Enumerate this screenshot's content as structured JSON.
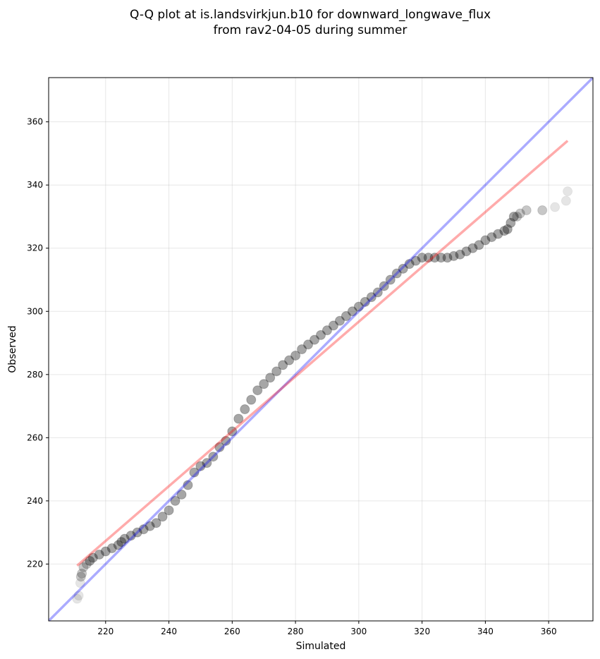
{
  "chart_data": {
    "type": "scatter",
    "title": [
      "Q-Q plot at is.landsvirkjun.b10 for downward_longwave_flux",
      "from rav2-04-05 during summer"
    ],
    "xlabel": "Simulated",
    "ylabel": "Observed",
    "xlim": [
      202,
      374
    ],
    "ylim": [
      202,
      374
    ],
    "xticks": [
      220,
      240,
      260,
      280,
      300,
      320,
      340,
      360
    ],
    "yticks": [
      220,
      240,
      260,
      280,
      300,
      320,
      340,
      360
    ],
    "grid": true,
    "reference_lines": [
      {
        "kind": "one-to-one",
        "color": "#0000ff",
        "opacity": 0.33,
        "from": [
          202,
          202
        ],
        "to": [
          374,
          374
        ]
      },
      {
        "kind": "fit",
        "color": "#ff0000",
        "opacity": 0.33,
        "from": [
          211,
          219.5
        ],
        "to": [
          366,
          354
        ]
      }
    ],
    "points": {
      "color": "#000000",
      "x": [
        211.0,
        211.5,
        212.0,
        212.2,
        212.5,
        213.0,
        214.0,
        215.0,
        216.0,
        218.0,
        220.0,
        222.0,
        224.0,
        225.0,
        226.0,
        228.0,
        230.0,
        232.0,
        234.0,
        236.0,
        238.0,
        240.0,
        242.0,
        244.0,
        246.0,
        248.0,
        250.0,
        252.0,
        254.0,
        256.0,
        258.0,
        260.0,
        262.0,
        264.0,
        266.0,
        268.0,
        270.0,
        272.0,
        274.0,
        276.0,
        278.0,
        280.0,
        282.0,
        284.0,
        286.0,
        288.0,
        290.0,
        292.0,
        294.0,
        296.0,
        298.0,
        300.0,
        302.0,
        304.0,
        306.0,
        308.0,
        310.0,
        312.0,
        314.0,
        316.0,
        318.0,
        320.0,
        322.0,
        324.0,
        326.0,
        328.0,
        330.0,
        332.0,
        334.0,
        336.0,
        338.0,
        340.0,
        342.0,
        344.0,
        346.0,
        347.0,
        348.0,
        349.0,
        350.0,
        351.0,
        353.0,
        358.0,
        362.0,
        365.5,
        366.0
      ],
      "y": [
        209.0,
        210.0,
        214.0,
        216.0,
        217.0,
        219.0,
        220.0,
        221.0,
        222.0,
        223.0,
        224.0,
        225.0,
        226.0,
        227.0,
        228.0,
        229.0,
        230.0,
        231.0,
        232.0,
        233.0,
        235.0,
        237.0,
        240.0,
        242.0,
        245.0,
        249.0,
        251.0,
        252.0,
        254.0,
        257.0,
        259.0,
        262.0,
        266.0,
        269.0,
        272.0,
        275.0,
        277.0,
        279.0,
        281.0,
        283.0,
        284.5,
        286.0,
        288.0,
        289.5,
        291.0,
        292.5,
        294.0,
        295.5,
        297.0,
        298.5,
        300.0,
        301.5,
        303.0,
        304.5,
        306.0,
        308.0,
        310.0,
        312.0,
        313.5,
        315.0,
        316.0,
        317.0,
        317.0,
        317.0,
        317.0,
        317.0,
        317.5,
        318.0,
        319.0,
        320.0,
        321.0,
        322.5,
        323.5,
        324.5,
        325.5,
        326.0,
        328.0,
        330.0,
        330.0,
        331.0,
        332.0,
        332.0,
        333.0,
        335.0,
        338.0
      ]
    }
  }
}
